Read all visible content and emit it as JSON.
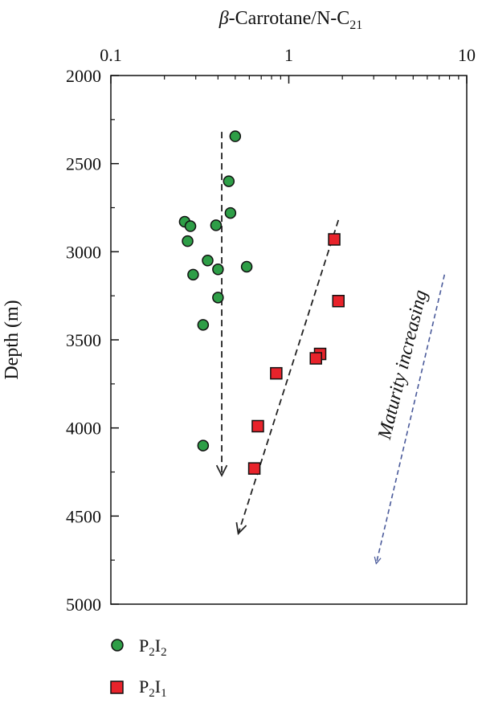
{
  "chart_data": {
    "type": "scatter",
    "title": "",
    "xlabel": "β-Carrotane/N-C21",
    "ylabel": "Depth (m)",
    "xscale": "log",
    "x_position": "top",
    "y_inverted": true,
    "xlim": [
      0.1,
      10
    ],
    "ylim": [
      2000,
      5000
    ],
    "x_ticks": [
      "0.1",
      "1",
      "10"
    ],
    "y_ticks": [
      "2000",
      "2500",
      "3000",
      "3500",
      "4000",
      "4500",
      "5000"
    ],
    "grid": false,
    "legend_position": "bottom-left",
    "series": [
      {
        "name": "P2I2",
        "marker": "circle",
        "color": "#2e9e47",
        "points": [
          {
            "x": 0.5,
            "y": 2345
          },
          {
            "x": 0.46,
            "y": 2600
          },
          {
            "x": 0.47,
            "y": 2780
          },
          {
            "x": 0.26,
            "y": 2830
          },
          {
            "x": 0.28,
            "y": 2855
          },
          {
            "x": 0.39,
            "y": 2850
          },
          {
            "x": 0.27,
            "y": 2940
          },
          {
            "x": 0.35,
            "y": 3050
          },
          {
            "x": 0.4,
            "y": 3100
          },
          {
            "x": 0.58,
            "y": 3085
          },
          {
            "x": 0.29,
            "y": 3130
          },
          {
            "x": 0.4,
            "y": 3260
          },
          {
            "x": 0.33,
            "y": 3415
          },
          {
            "x": 0.33,
            "y": 4100
          }
        ]
      },
      {
        "name": "P2I1",
        "marker": "square",
        "color": "#e8232b",
        "points": [
          {
            "x": 1.8,
            "y": 2930
          },
          {
            "x": 1.9,
            "y": 3280
          },
          {
            "x": 1.5,
            "y": 3580
          },
          {
            "x": 1.42,
            "y": 3605
          },
          {
            "x": 0.85,
            "y": 3690
          },
          {
            "x": 0.67,
            "y": 3990
          },
          {
            "x": 0.64,
            "y": 4230
          }
        ]
      }
    ],
    "trend_arrows": [
      {
        "series": "P2I2",
        "from": {
          "x": 0.42,
          "y": 2320
        },
        "to": {
          "x": 0.42,
          "y": 4270
        },
        "color": "#222222"
      },
      {
        "series": "P2I1",
        "from": {
          "x": 1.9,
          "y": 2820
        },
        "to": {
          "x": 0.52,
          "y": 4600
        },
        "color": "#222222"
      },
      {
        "series": "maturity",
        "from": {
          "x": 7.5,
          "y": 3130
        },
        "to": {
          "x": 3.1,
          "y": 4770
        },
        "color": "#4a5a9a"
      }
    ],
    "annotations": [
      {
        "text": "Maturity increasing",
        "x": 3.7,
        "y": 4070
      }
    ]
  },
  "legend": {
    "items": [
      {
        "base": "P",
        "sub1": "2",
        "mid": "I",
        "sub2": "2"
      },
      {
        "base": "P",
        "sub1": "2",
        "mid": "I",
        "sub2": "1"
      }
    ]
  },
  "axis_title": {
    "x_prefix": "β",
    "x_middle": "-Carrotane/N-C",
    "x_sub": "21",
    "y": "Depth (m)"
  }
}
